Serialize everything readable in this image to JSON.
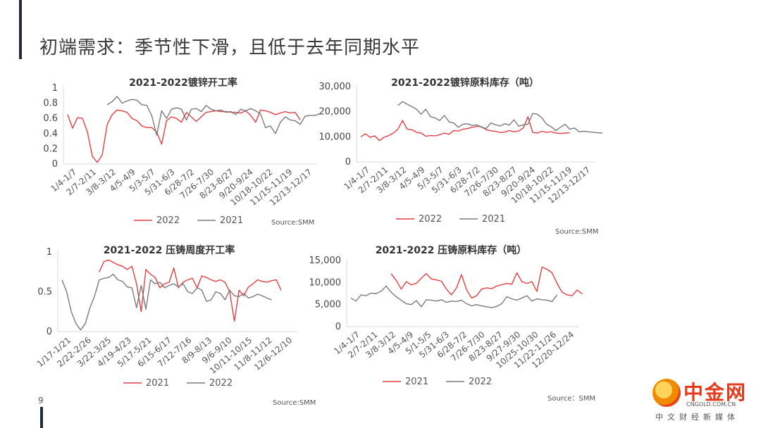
{
  "page": {
    "title": "初端需求：季节性下滑，且低于去年同期水平",
    "page_number": "9"
  },
  "logo": {
    "name": "中金网",
    "url": "CNGOLD.COM.CN",
    "tagline": "中文财经新媒体"
  },
  "colors": {
    "red": "#e23f43",
    "gray": "#7b7b7b"
  },
  "chart_data": [
    {
      "type": "line",
      "title": "2021-2022镀锌开工率",
      "xlabel": "",
      "ylabel": "",
      "ylim": [
        0,
        1
      ],
      "yticks": [
        "0",
        "0.2",
        "0.4",
        "0.6",
        "0.8",
        "1"
      ],
      "x_tick_labels": [
        "1/4-1/7",
        "2/7-2/11",
        "3/8-3/12",
        "4/5-4/9",
        "5/3-5/7",
        "5/31-6/3",
        "6/28-7/2",
        "7/26-7/30",
        "8/23-8/27",
        "9/20-9/24",
        "10/18-10/22",
        "11/15-11/19",
        "12/13-12/17"
      ],
      "source": "Source:SMM",
      "legend": [
        {
          "name": "2022"
        },
        {
          "name": "2021"
        }
      ],
      "series": [
        {
          "name": "2022",
          "color": "#e23f43",
          "start": 0,
          "values": [
            0.65,
            0.47,
            0.61,
            0.6,
            0.42,
            0.1,
            0.02,
            0.12,
            0.52,
            0.65,
            0.71,
            0.7,
            0.68,
            0.6,
            0.57,
            0.5,
            0.48,
            0.48,
            0.42,
            0.26,
            0.57,
            0.62,
            0.6,
            0.55,
            0.68,
            0.62,
            0.56,
            0.62,
            0.68,
            0.69,
            0.7,
            0.69,
            0.69,
            0.68,
            0.68,
            0.67,
            0.7,
            0.64,
            0.55,
            0.71,
            0.7,
            0.68,
            0.65,
            0.67,
            0.69,
            0.67,
            0.68,
            0.58
          ]
        },
        {
          "name": "2021",
          "color": "#7b7b7b",
          "start": 8,
          "values": [
            0.78,
            0.82,
            0.89,
            0.8,
            0.83,
            0.85,
            0.84,
            0.78,
            0.77,
            0.64,
            0.38,
            0.7,
            0.6,
            0.72,
            0.74,
            0.72,
            0.58,
            0.72,
            0.73,
            0.69,
            0.77,
            0.72,
            0.7,
            0.71,
            0.68,
            0.69,
            0.65,
            0.72,
            0.7,
            0.73,
            0.7,
            0.66,
            0.48,
            0.5,
            0.4,
            0.55,
            0.62,
            0.58,
            0.57,
            0.52,
            0.63,
            0.64,
            0.64,
            0.66
          ]
        }
      ]
    },
    {
      "type": "line",
      "title": "2021-2022镀锌原料库存（吨）",
      "xlabel": "",
      "ylabel": "",
      "ylim": [
        0,
        30000
      ],
      "yticks": [
        "0",
        "10,000",
        "20,000",
        "30,000"
      ],
      "x_tick_labels": [
        "1/4-1/7",
        "2/7-2/11",
        "3/8-3/12",
        "4/5-4/9",
        "5/3-5/7",
        "5/31-6/3",
        "6/28-7/2",
        "7/26-7/30",
        "8/23-8/27",
        "9/20-9/24",
        "10/18-10/22",
        "11/15-11/19",
        "12/13-12/17"
      ],
      "source": "Source:SMM",
      "legend": [
        {
          "name": "2022"
        },
        {
          "name": "2021"
        }
      ],
      "series": [
        {
          "name": "2022",
          "color": "#e23f43",
          "start": 0,
          "values": [
            10000,
            11200,
            9800,
            10400,
            8500,
            9800,
            10500,
            11500,
            13000,
            16500,
            13000,
            12800,
            11800,
            11500,
            10200,
            10500,
            10400,
            10800,
            11500,
            11000,
            12500,
            12300,
            13000,
            13300,
            13800,
            14200,
            14000,
            12800,
            12400,
            12200,
            11700,
            11900,
            12500,
            12000,
            12300,
            13500,
            18000,
            11800,
            11500,
            12200,
            11800,
            12000,
            11500,
            11300,
            11500,
            11600
          ]
        },
        {
          "name": "2021",
          "color": "#7b7b7b",
          "start": 8,
          "values": [
            22500,
            24000,
            23000,
            22000,
            21000,
            19000,
            21000,
            18000,
            17500,
            16500,
            18500,
            16000,
            15500,
            13800,
            15000,
            15200,
            14500,
            14800,
            13800,
            13300,
            15500,
            14800,
            14300,
            15200,
            14700,
            16800,
            14200,
            14800,
            15000,
            19300,
            19000,
            17500,
            15000,
            14000,
            12500,
            13800,
            15000,
            13000,
            13500,
            12000,
            12200,
            12000,
            11800,
            11600,
            11500
          ]
        }
      ]
    },
    {
      "type": "line",
      "title": "2021-2022 压铸周度开工率",
      "xlabel": "",
      "ylabel": "",
      "ylim": [
        0,
        1
      ],
      "yticks": [
        "0",
        "0.5",
        "1"
      ],
      "x_tick_labels": [
        "1/17-1/21",
        "2/22-2/26",
        "3/22-3/25",
        "4/19-4/23",
        "5/17-5/21",
        "6/15-6/17",
        "7/12-7/16",
        "8/9-8/13",
        "9/6-9/10",
        "10/11-10/15",
        "11/8-11/12",
        "12/6-12/10"
      ],
      "source": "Source:SMM",
      "legend": [
        {
          "name": "2021"
        },
        {
          "name": "2022"
        }
      ],
      "series": [
        {
          "name": "2021",
          "color": "#e23f43",
          "start": 8,
          "values": [
            0.75,
            0.88,
            0.9,
            0.87,
            0.84,
            0.82,
            0.78,
            0.82,
            0.6,
            0.25,
            0.78,
            0.72,
            0.68,
            0.55,
            0.6,
            0.62,
            0.8,
            0.55,
            0.62,
            0.65,
            0.67,
            0.55,
            0.7,
            0.68,
            0.65,
            0.63,
            0.65,
            0.62,
            0.5,
            0.13,
            0.52,
            0.45,
            0.56,
            0.6,
            0.65,
            0.63,
            0.62,
            0.64,
            0.65,
            0.52
          ]
        },
        {
          "name": "2022",
          "color": "#7b7b7b",
          "start": 0,
          "values": [
            0.65,
            0.5,
            0.25,
            0.1,
            0.02,
            0.1,
            0.3,
            0.45,
            0.65,
            0.67,
            0.68,
            0.72,
            0.65,
            0.63,
            0.56,
            0.55,
            0.3,
            0.58,
            0.28,
            0.65,
            0.6,
            0.62,
            0.55,
            0.58,
            0.6,
            0.56,
            0.6,
            0.5,
            0.48,
            0.55,
            0.52,
            0.38,
            0.4,
            0.5,
            0.48,
            0.4,
            0.52,
            0.45,
            0.44,
            0.48,
            0.42,
            0.44,
            0.47,
            0.45,
            0.42,
            0.4
          ]
        }
      ]
    },
    {
      "type": "line",
      "title": "2021-2022 压铸原料库存（吨）",
      "xlabel": "",
      "ylabel": "",
      "ylim": [
        0,
        15000
      ],
      "yticks": [
        "0",
        "5,000",
        "10,000",
        "15,000"
      ],
      "x_tick_labels": [
        "1/4-1/7",
        "2/7-2/11",
        "3/8-3/12",
        "4/5-4/9",
        "5/1-5/5",
        "5/31-6/3",
        "6/28-7/2",
        "7/26-7/30",
        "8/23-8/27",
        "9/27-9/30",
        "10/25-10/30",
        "11/22-11/26",
        "12/20-12/24"
      ],
      "source": "Source：SMM",
      "legend": [
        {
          "name": "2021"
        },
        {
          "name": "2022"
        }
      ],
      "series": [
        {
          "name": "2021",
          "color": "#e23f43",
          "start": 8,
          "values": [
            12000,
            10500,
            8500,
            10200,
            9500,
            9800,
            11000,
            12000,
            10800,
            10600,
            10300,
            8500,
            7200,
            8800,
            11800,
            8400,
            6500,
            7000,
            8500,
            8800,
            8600,
            9200,
            9500,
            9800,
            9600,
            12200,
            10200,
            9800,
            10200,
            8000,
            13500,
            13000,
            12200,
            9800,
            7800,
            7200,
            7000,
            8300,
            7400
          ]
        },
        {
          "name": "2022",
          "color": "#7b7b7b",
          "start": 0,
          "values": [
            6500,
            5800,
            7200,
            7000,
            7600,
            7500,
            8000,
            9200,
            7800,
            6800,
            6000,
            5200,
            5000,
            5900,
            4500,
            6100,
            6000,
            5800,
            6100,
            5500,
            5800,
            5700,
            6000,
            5200,
            4700,
            5000,
            4700,
            4500,
            4300,
            4600,
            5200,
            6800,
            6300,
            6000,
            6500,
            7000,
            5800,
            6300,
            6100,
            6000,
            5700,
            7200
          ]
        }
      ]
    }
  ]
}
